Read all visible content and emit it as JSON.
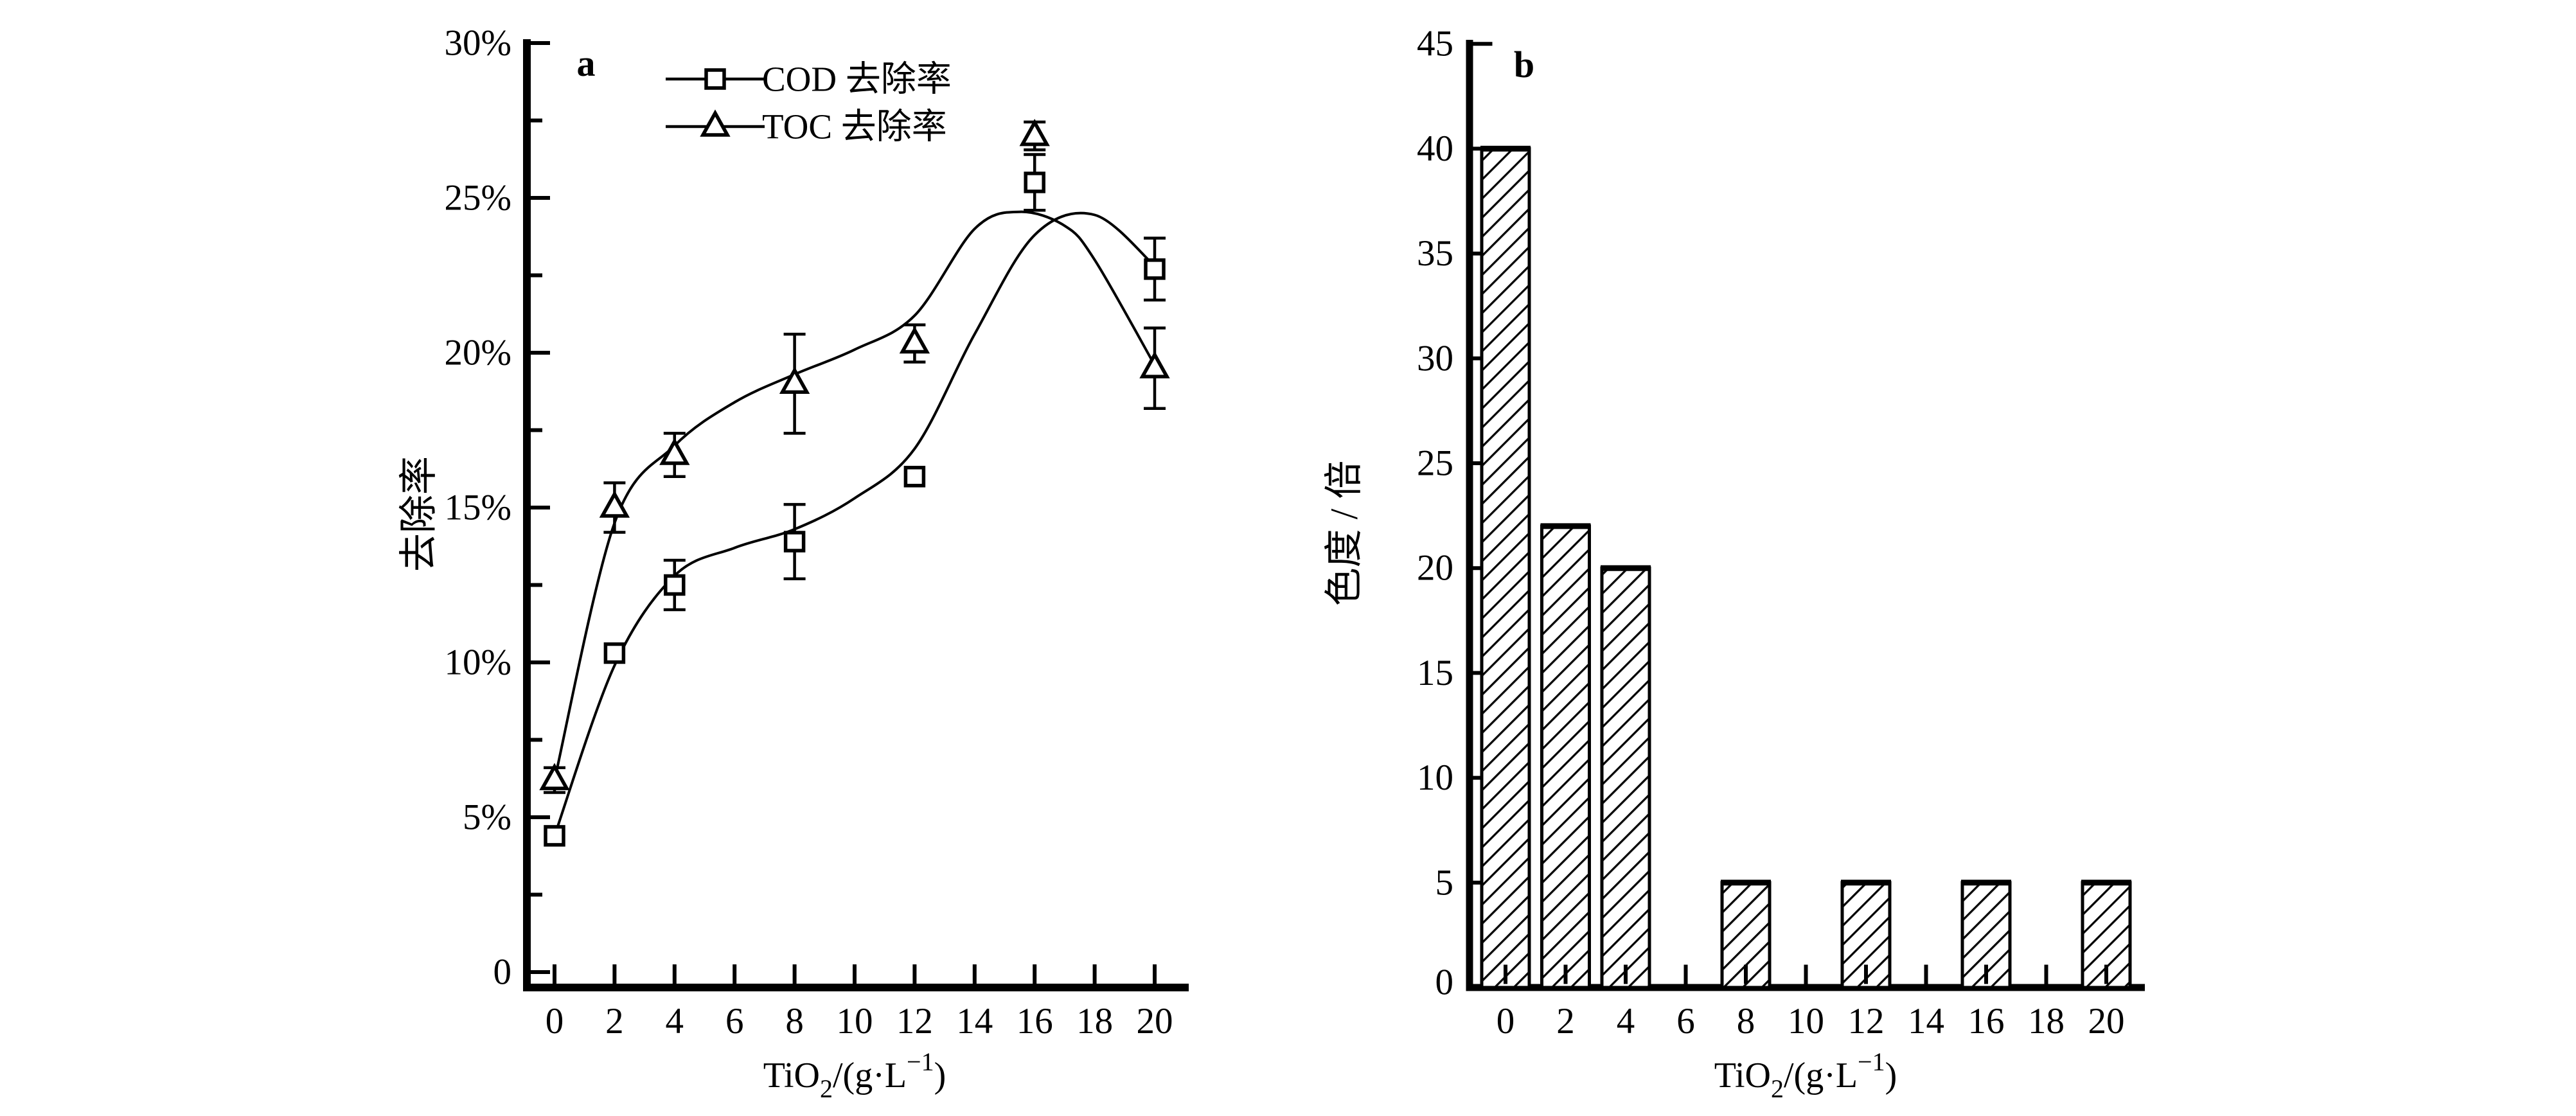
{
  "figure": {
    "background": "#ffffff",
    "ink_color": "#000000",
    "description": "Two-panel scientific figure: effect of TiO2 dosage on removal rates (a) and chromaticity (b)"
  },
  "chart_data": [
    {
      "id": "a",
      "type": "line",
      "panel_label": "a",
      "title": "",
      "xlabel_plain": "TiO2/(g·L−1)",
      "xlabel_rich": [
        {
          "t": "TiO"
        },
        {
          "t": "2",
          "pos": "sub"
        },
        {
          "t": "/(g·L"
        },
        {
          "t": "−1",
          "pos": "sup"
        },
        {
          "t": ")"
        }
      ],
      "ylabel": "去除率",
      "x_ticks": [
        0,
        2,
        4,
        6,
        8,
        10,
        12,
        14,
        16,
        18,
        20
      ],
      "y_ticks": [
        {
          "value": 0,
          "label": "0"
        },
        {
          "value": 5,
          "label": "5%"
        },
        {
          "value": 10,
          "label": "10%"
        },
        {
          "value": 15,
          "label": "15%"
        },
        {
          "value": 20,
          "label": "20%"
        },
        {
          "value": 25,
          "label": "25%"
        },
        {
          "value": 30,
          "label": "30%"
        }
      ],
      "y_minor_ticks": [
        2.5,
        7.5,
        12.5,
        17.5,
        22.5,
        27.5
      ],
      "xlim": [
        -0.9,
        21.1
      ],
      "ylim": [
        -0.5,
        30
      ],
      "grid": false,
      "legend": {
        "position": "top-left-inside",
        "entries": [
          "COD 去除率",
          "TOC 去除率"
        ]
      },
      "series": [
        {
          "name": "COD 去除率",
          "marker": "square",
          "x": [
            0,
            2,
            4,
            8,
            12,
            16,
            20
          ],
          "y": [
            4.4,
            10.3,
            12.5,
            13.9,
            16.0,
            25.5,
            22.7
          ],
          "yerr": [
            0,
            0,
            0.8,
            1.2,
            0,
            0.9,
            1.0
          ],
          "smooth_line": [
            [
              0,
              4.4
            ],
            [
              2,
              9.9
            ],
            [
              4,
              12.8
            ],
            [
              6,
              13.7
            ],
            [
              8,
              14.3
            ],
            [
              10,
              15.3
            ],
            [
              12,
              16.9
            ],
            [
              14,
              20.6
            ],
            [
              16,
              23.8
            ],
            [
              18,
              24.45
            ],
            [
              20,
              22.8
            ]
          ]
        },
        {
          "name": "TOC 去除率",
          "marker": "triangle",
          "x": [
            0,
            2,
            4,
            8,
            12,
            16,
            20
          ],
          "y": [
            6.2,
            15.0,
            16.7,
            19.0,
            20.3,
            27.0,
            19.5
          ],
          "yerr": [
            0.4,
            0.8,
            0.7,
            1.6,
            0.6,
            0.45,
            1.3
          ],
          "smooth_line": [
            [
              0,
              6.2
            ],
            [
              2,
              14.5
            ],
            [
              4,
              17.0
            ],
            [
              6,
              18.4
            ],
            [
              8,
              19.3
            ],
            [
              10,
              20.1
            ],
            [
              12,
              21.2
            ],
            [
              14,
              24.0
            ],
            [
              15.5,
              24.55
            ],
            [
              17,
              24.1
            ],
            [
              18,
              23.0
            ],
            [
              20,
              19.6
            ]
          ]
        }
      ]
    },
    {
      "id": "b",
      "type": "bar",
      "panel_label": "b",
      "title": "",
      "xlabel_plain": "TiO2/(g·L−1)",
      "xlabel_rich": [
        {
          "t": "TiO"
        },
        {
          "t": "2",
          "pos": "sub"
        },
        {
          "t": "/(g·L"
        },
        {
          "t": "−1",
          "pos": "sup"
        },
        {
          "t": ")"
        }
      ],
      "ylabel": "色度 / 倍",
      "x_ticks": [
        0,
        2,
        4,
        6,
        8,
        10,
        12,
        14,
        16,
        18,
        20
      ],
      "y_ticks": [
        {
          "value": 0,
          "label": "0"
        },
        {
          "value": 5,
          "label": "5"
        },
        {
          "value": 10,
          "label": "10"
        },
        {
          "value": 15,
          "label": "15"
        },
        {
          "value": 20,
          "label": "20"
        },
        {
          "value": 25,
          "label": "25"
        },
        {
          "value": 30,
          "label": "30"
        },
        {
          "value": 35,
          "label": "35"
        },
        {
          "value": 40,
          "label": "40"
        },
        {
          "value": 45,
          "label": "45"
        }
      ],
      "xlim": [
        -1.2,
        21.3
      ],
      "ylim": [
        0,
        45
      ],
      "grid": false,
      "categories": [
        0,
        2,
        4,
        8,
        12,
        16,
        20
      ],
      "values": [
        40,
        22,
        20,
        5,
        5,
        5,
        5
      ],
      "bar_width_units": 1.6,
      "hatch": "forward-diagonal"
    }
  ]
}
